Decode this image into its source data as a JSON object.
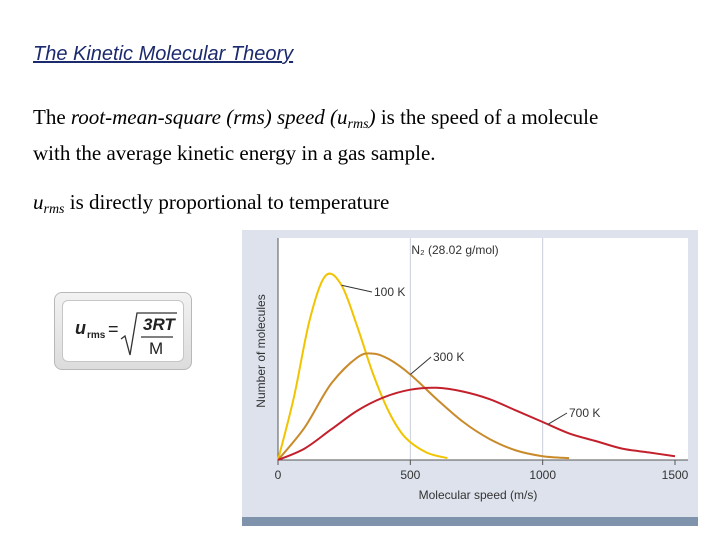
{
  "slide": {
    "title": "The Kinetic Molecular Theory",
    "para1": {
      "lead": "The ",
      "italic_term": "root-mean-square (rms) speed (u",
      "sub": "rms",
      "close": ")",
      "rest_line1": " is the speed of a molecule",
      "line2": "with the average kinetic energy in a gas sample."
    },
    "para2": {
      "u": "u",
      "sub": "rms",
      "rest": " is directly proportional to temperature"
    }
  },
  "formula": {
    "lhs_u": "u",
    "lhs_sub": "rms",
    "equals": "=",
    "numerator": "3RT",
    "denominator": "M"
  },
  "chart_data": {
    "type": "line",
    "title": "N₂ (28.02 g/mol)",
    "xlabel": "Molecular speed (m/s)",
    "ylabel": "Number of molecules",
    "xlim": [
      0,
      1500
    ],
    "ylim": [
      0,
      1.0
    ],
    "x_ticks": [
      0,
      500,
      1000,
      1500
    ],
    "grid": "vertical at 500 and 1000",
    "series": [
      {
        "name": "100 K",
        "color": "#f2c400",
        "x": [
          0,
          60,
          120,
          180,
          240,
          300,
          360,
          420,
          480,
          560,
          640
        ],
        "y": [
          0,
          0.33,
          0.74,
          0.97,
          0.92,
          0.7,
          0.45,
          0.25,
          0.12,
          0.04,
          0.01
        ]
      },
      {
        "name": "300 K",
        "color": "#c98a2a",
        "x": [
          0,
          100,
          200,
          300,
          360,
          420,
          500,
          600,
          700,
          800,
          900,
          1000,
          1100
        ],
        "y": [
          0,
          0.17,
          0.4,
          0.54,
          0.56,
          0.53,
          0.45,
          0.32,
          0.2,
          0.11,
          0.05,
          0.02,
          0.01
        ]
      },
      {
        "name": "700 K",
        "color": "#c3202c",
        "x": [
          0,
          100,
          200,
          300,
          400,
          500,
          600,
          700,
          800,
          900,
          1000,
          1100,
          1200,
          1300,
          1400,
          1500
        ],
        "y": [
          0,
          0.06,
          0.16,
          0.26,
          0.33,
          0.37,
          0.38,
          0.36,
          0.32,
          0.26,
          0.2,
          0.14,
          0.1,
          0.06,
          0.04,
          0.02
        ]
      }
    ]
  }
}
